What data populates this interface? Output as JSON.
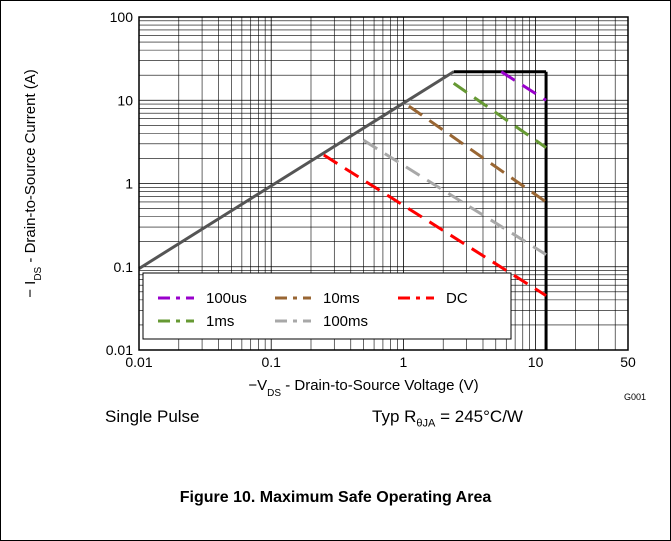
{
  "chart_data": {
    "type": "line",
    "xscale": "log",
    "yscale": "log",
    "xlim": [
      0.01,
      50
    ],
    "ylim": [
      0.01,
      100
    ],
    "grid": true,
    "x_ticks": [
      "0.01",
      "0.1",
      "1",
      "10",
      "50"
    ],
    "y_ticks": [
      "0.01",
      "0.1",
      "1",
      "10",
      "100"
    ],
    "xlabel": {
      "prefix": "−V",
      "sub": "DS",
      "suffix": " - Drain-to-Source Voltage (V)"
    },
    "ylabel": {
      "prefix": "− I",
      "sub": "DS",
      "suffix": " - Drain-to-Source Current (A)"
    },
    "figure_id": "G001",
    "legend_position": "bottom-left",
    "boundary": [
      {
        "x": 0.01,
        "y": 0.095
      },
      {
        "x": 2.4,
        "y": 22
      },
      {
        "x": 12,
        "y": 22
      },
      {
        "x": 12,
        "y": 0.01
      }
    ],
    "series": [
      {
        "name": "100us",
        "color": "#9900cc",
        "points": [
          {
            "x": 5.5,
            "y": 22
          },
          {
            "x": 12,
            "y": 10
          }
        ]
      },
      {
        "name": "1ms",
        "color": "#669933",
        "points": [
          {
            "x": 2.4,
            "y": 16
          },
          {
            "x": 12,
            "y": 2.7
          }
        ]
      },
      {
        "name": "10ms",
        "color": "#996633",
        "points": [
          {
            "x": 1.1,
            "y": 8.5
          },
          {
            "x": 12,
            "y": 0.6
          }
        ]
      },
      {
        "name": "100ms",
        "color": "#a8a8a8",
        "points": [
          {
            "x": 0.5,
            "y": 3.3
          },
          {
            "x": 12,
            "y": 0.14
          }
        ]
      },
      {
        "name": "DC",
        "color": "#ff0000",
        "points": [
          {
            "x": 0.25,
            "y": 2.2
          },
          {
            "x": 12,
            "y": 0.045
          }
        ]
      }
    ],
    "legend_rows": [
      [
        "100us",
        "10ms",
        "DC"
      ],
      [
        "1ms",
        "100ms"
      ]
    ]
  },
  "notes": {
    "single_pulse": "Single Pulse",
    "typ_prefix": "Typ R",
    "typ_sub": "θJA",
    "typ_suffix": " = 245°C/W"
  },
  "caption": "Figure 10. Maximum Safe Operating Area"
}
